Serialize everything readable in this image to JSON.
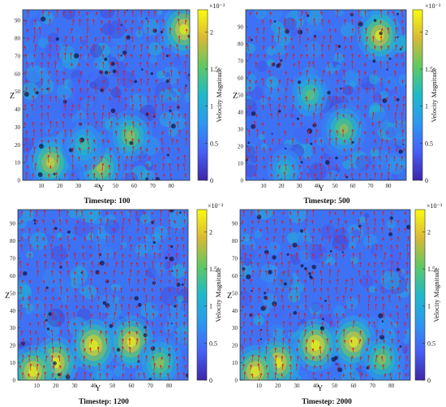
{
  "chart_data": [
    {
      "type": "heatmap",
      "title": "Timestep: 100",
      "xlabel": "Y",
      "ylabel": "Z",
      "xticks": [
        "10",
        "20",
        "30",
        "40",
        "50",
        "60",
        "70",
        "80"
      ],
      "yticks": [
        "0",
        "10",
        "20",
        "30",
        "40",
        "50",
        "60",
        "70",
        "80",
        "90"
      ],
      "xlim": [
        0,
        90
      ],
      "ylim": [
        0,
        96
      ],
      "colorbar": {
        "label": "Velocity Magnitude",
        "exponent": "×10⁻³",
        "ticks": [
          "0",
          "0.5",
          "1",
          "1.5",
          "2"
        ],
        "range": [
          0,
          0.0023
        ]
      },
      "hotspots": [
        {
          "y": 87,
          "z": 85,
          "value": 0.0024
        },
        {
          "y": 15,
          "z": 10,
          "value": 0.0021
        },
        {
          "y": 42,
          "z": 7,
          "value": 0.0019
        },
        {
          "y": 58,
          "z": 25,
          "value": 0.0018
        },
        {
          "y": 33,
          "z": 20,
          "value": 0.0014
        }
      ],
      "arrow_density": 0.75
    },
    {
      "type": "heatmap",
      "title": "Timestep: 500",
      "xlabel": "Y",
      "ylabel": "Z",
      "xticks": [
        "10",
        "20",
        "30",
        "40",
        "50",
        "60",
        "70",
        "80"
      ],
      "yticks": [
        "0",
        "10",
        "20",
        "30",
        "40",
        "50",
        "60",
        "70",
        "80",
        "90"
      ],
      "xlim": [
        0,
        90
      ],
      "ylim": [
        0,
        100
      ],
      "colorbar": {
        "label": "Velocity Magnitude",
        "exponent": "×10⁻³",
        "ticks": [
          "0",
          "0.5",
          "1",
          "1.5",
          "2"
        ],
        "range": [
          0,
          0.0023
        ]
      },
      "hotspots": [
        {
          "y": 75,
          "z": 85,
          "value": 0.0023
        },
        {
          "y": 55,
          "z": 30,
          "value": 0.0018
        },
        {
          "y": 36,
          "z": 50,
          "value": 0.0016
        },
        {
          "y": 22,
          "z": 6,
          "value": 0.0013
        }
      ],
      "arrow_density": 0.72
    },
    {
      "type": "heatmap",
      "title": "Timestep: 1200",
      "xlabel": "Y",
      "ylabel": "Z",
      "xticks": [
        "10",
        "20",
        "30",
        "40",
        "50",
        "60",
        "70",
        "80"
      ],
      "yticks": [
        "0",
        "10",
        "20",
        "30",
        "40",
        "50",
        "60",
        "70",
        "80",
        "90"
      ],
      "xlim": [
        0,
        90
      ],
      "ylim": [
        0,
        98
      ],
      "colorbar": {
        "label": "Velocity Magnitude",
        "exponent": "×10⁻³",
        "ticks": [
          "0",
          "0.5",
          "1",
          "1.5",
          "2"
        ],
        "range": [
          0,
          0.0023
        ]
      },
      "hotspots": [
        {
          "y": 40,
          "z": 20,
          "value": 0.0025
        },
        {
          "y": 60,
          "z": 22,
          "value": 0.0024
        },
        {
          "y": 20,
          "z": 10,
          "value": 0.0024
        },
        {
          "y": 8,
          "z": 5,
          "value": 0.0024
        },
        {
          "y": 75,
          "z": 10,
          "value": 0.0018
        }
      ],
      "arrow_density": 0.9
    },
    {
      "type": "heatmap",
      "title": "Timestep: 2000",
      "xlabel": "Y",
      "ylabel": "Z",
      "xticks": [
        "10",
        "20",
        "30",
        "40",
        "50",
        "60",
        "70",
        "80"
      ],
      "yticks": [
        "0",
        "10",
        "20",
        "30",
        "40",
        "50",
        "60",
        "70",
        "80",
        "90"
      ],
      "xlim": [
        0,
        90
      ],
      "ylim": [
        0,
        98
      ],
      "colorbar": {
        "label": "Velocity Magnitude",
        "exponent": "×10⁻³",
        "ticks": [
          "0",
          "0.5",
          "1",
          "1.5",
          "2"
        ],
        "range": [
          0,
          0.0023
        ]
      },
      "hotspots": [
        {
          "y": 40,
          "z": 20,
          "value": 0.0025
        },
        {
          "y": 60,
          "z": 22,
          "value": 0.0024
        },
        {
          "y": 20,
          "z": 10,
          "value": 0.0024
        },
        {
          "y": 8,
          "z": 5,
          "value": 0.0024
        },
        {
          "y": 75,
          "z": 12,
          "value": 0.0018
        }
      ],
      "arrow_density": 0.9
    }
  ],
  "colors": {
    "colormap": [
      "#3d26a8",
      "#4660f6",
      "#2d97f0",
      "#1fb9c9",
      "#5ec962",
      "#d9b935",
      "#f9fb0e"
    ],
    "arrow": "#e41a1c",
    "frame": "#333333"
  }
}
